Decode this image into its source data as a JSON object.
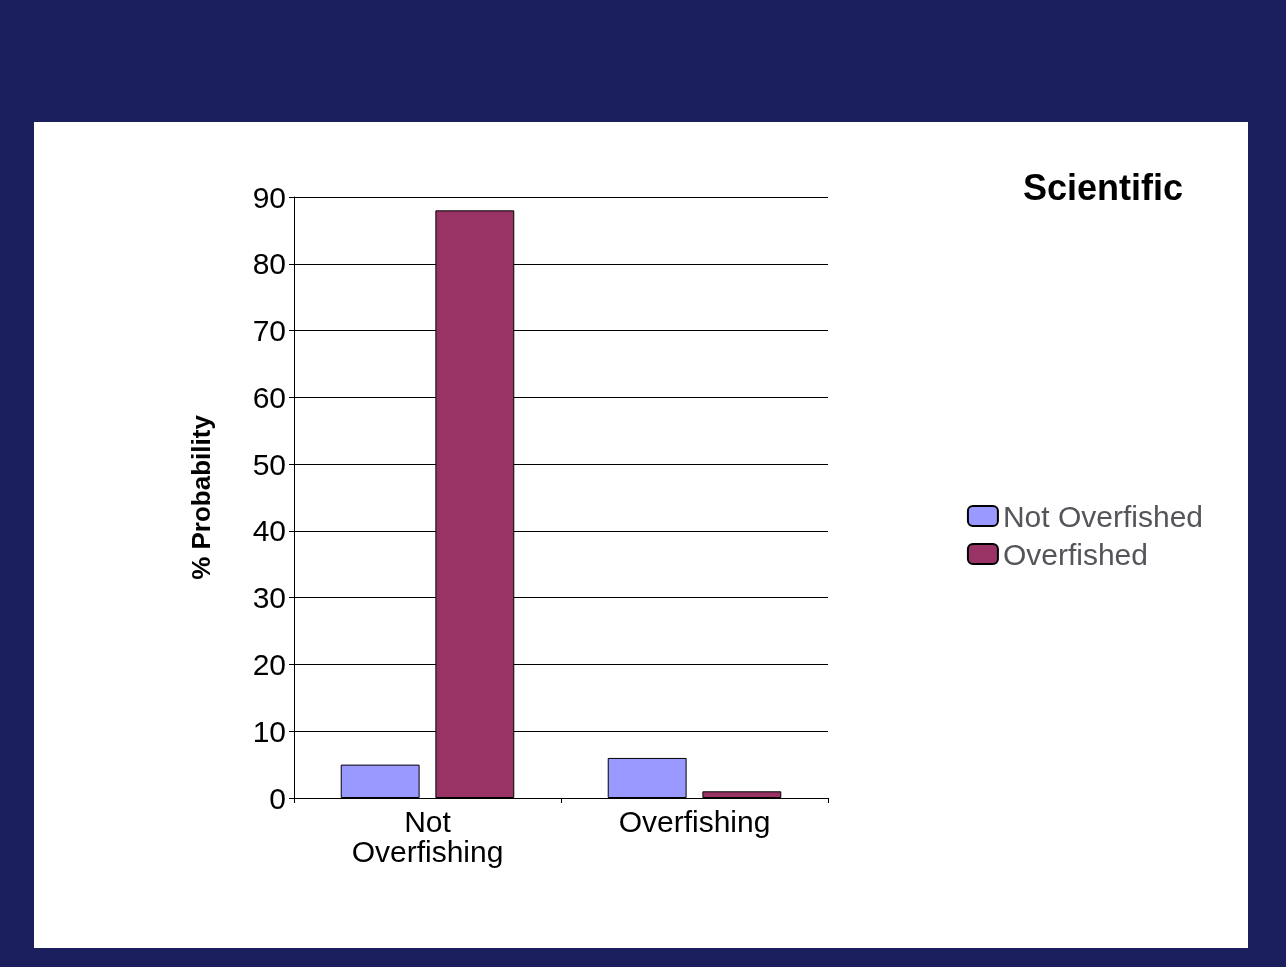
{
  "chart_data": {
    "type": "bar",
    "title": "Scientific",
    "ylabel": "% Probability",
    "categories": [
      "Not Overfishing",
      "Overfishing"
    ],
    "series": [
      {
        "name": "Not Overfished",
        "color": "#9999ff",
        "values": [
          5,
          6
        ]
      },
      {
        "name": "Overfished",
        "color": "#993366",
        "values": [
          88,
          1
        ]
      }
    ],
    "ylim": [
      0,
      90
    ],
    "yticks": [
      0,
      10,
      20,
      30,
      40,
      50,
      60,
      70,
      80,
      90
    ],
    "grid": "y",
    "legend": "right"
  }
}
